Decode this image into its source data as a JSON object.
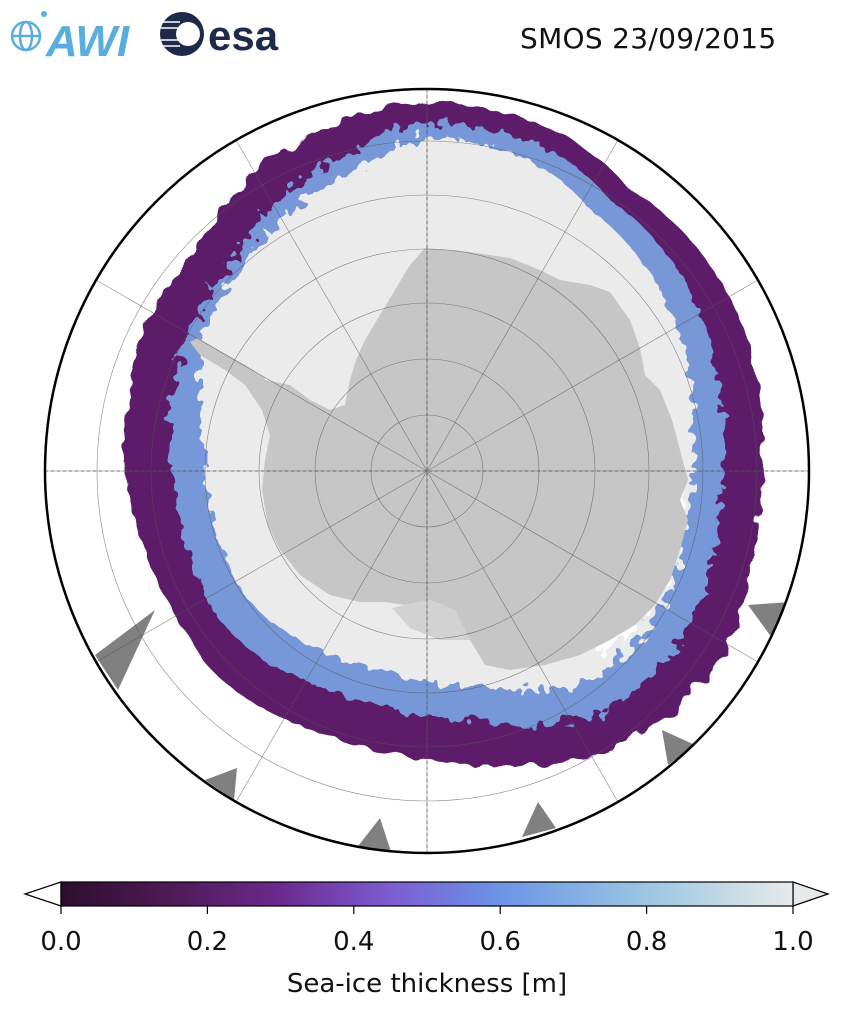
{
  "header": {
    "title": "SMOS 23/09/2015",
    "logos": [
      {
        "name": "AWI",
        "text": "AWI",
        "color": "#5aaede"
      },
      {
        "name": "esa",
        "text": "esa",
        "color": "#1e2a4a"
      }
    ]
  },
  "map": {
    "projection": "South Polar Stereographic",
    "region": "Antarctica / Southern Ocean",
    "colors": {
      "land": "#c6c6c6",
      "ice_thick": "#ebebeb",
      "ice_mid": "#7aa6e4",
      "ice_thin": "#5b1f6a",
      "missing": "#808080",
      "ocean": "#ffffff",
      "boundary": "#000000",
      "grid": "#555555"
    }
  },
  "colorbar": {
    "label": "Sea-ice thickness [m]",
    "ticks": [
      "0.0",
      "0.2",
      "0.4",
      "0.6",
      "0.8",
      "1.0"
    ],
    "min": 0.0,
    "max": 1.0,
    "extend": "both",
    "colormap_stops": [
      "#2d0e2f",
      "#4f1a55",
      "#6b2a8e",
      "#7d5cd2",
      "#6b94e6",
      "#9cc6e2",
      "#e6eaea"
    ]
  }
}
